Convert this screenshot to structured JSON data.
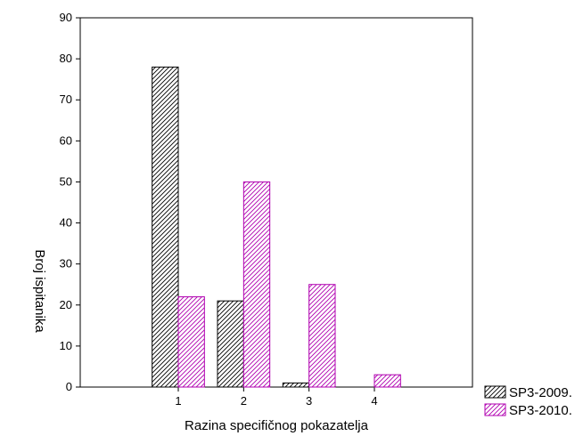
{
  "chart_data": {
    "type": "bar",
    "title": "",
    "xlabel": "Razina specifičnog pokazatelja",
    "ylabel": "Broj ispitanika",
    "categories": [
      "1",
      "2",
      "3",
      "4"
    ],
    "ylim": [
      0,
      90
    ],
    "yticks": [
      0,
      10,
      20,
      30,
      40,
      50,
      60,
      70,
      80,
      90
    ],
    "xlim": [
      -0.5,
      5.5
    ],
    "grid": false,
    "legend_position": "bottom-right, outside plot",
    "series": [
      {
        "name": "SP3-2009.",
        "values": [
          78,
          21,
          1,
          0
        ],
        "color": "#000000",
        "hatch": "diagonal"
      },
      {
        "name": "SP3-2010.",
        "values": [
          22,
          50,
          25,
          3
        ],
        "color": "#b000b0",
        "hatch": "diagonal"
      }
    ]
  }
}
